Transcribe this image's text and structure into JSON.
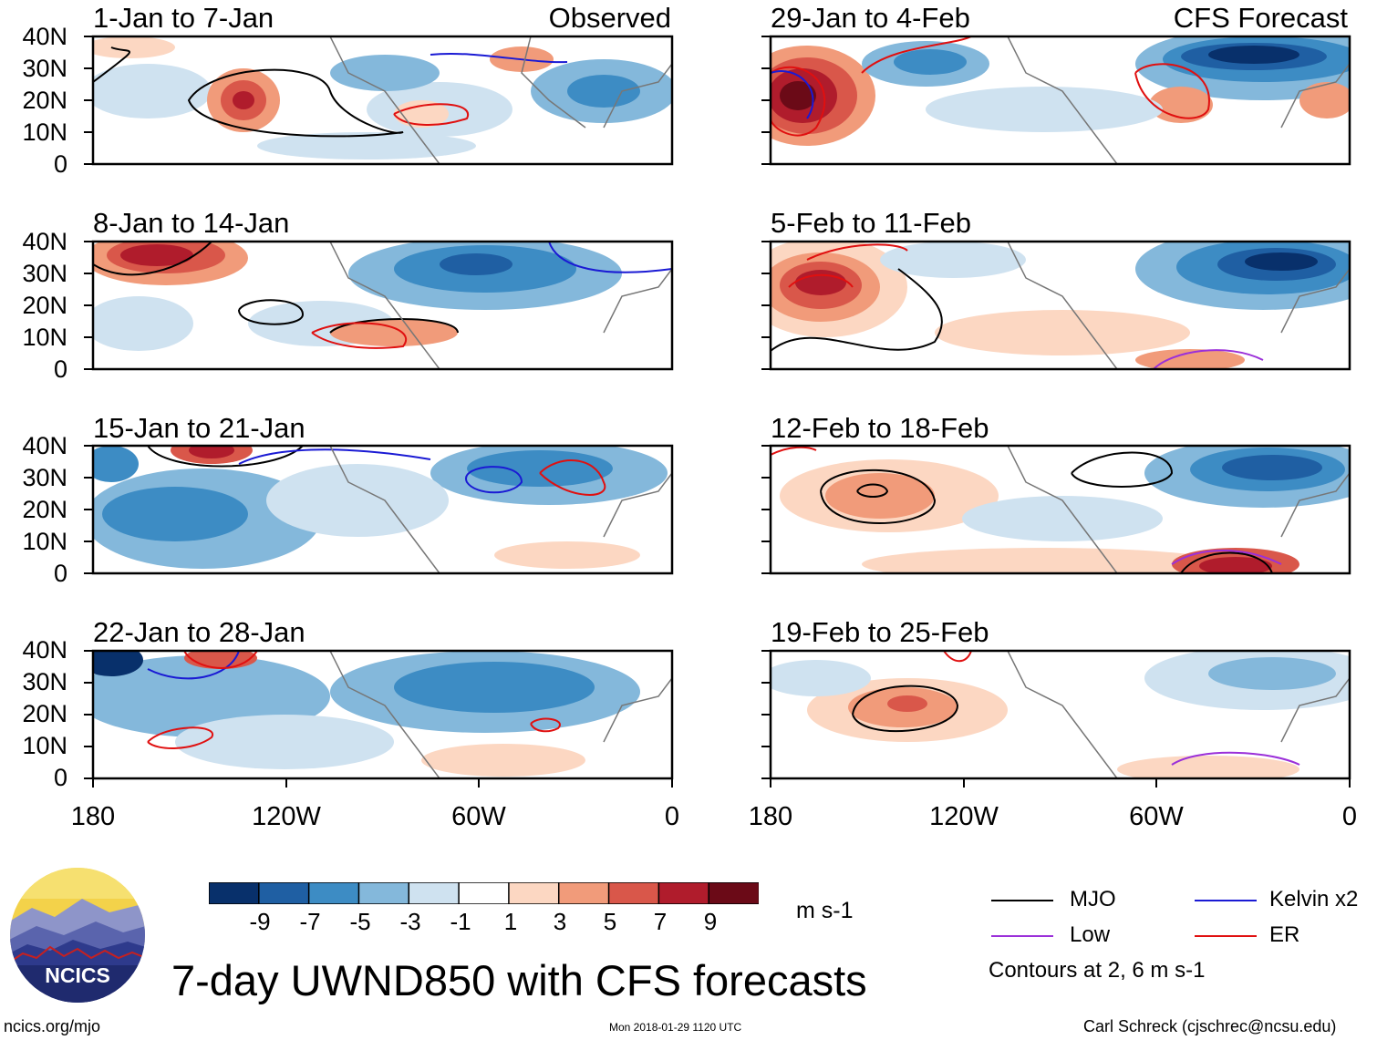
{
  "figure": {
    "title": "7-day UWND850 with CFS forecasts",
    "left_header": "Observed",
    "right_header": "CFS Forecast",
    "units": "m s-1",
    "footer_left": "ncics.org/mjo",
    "footer_center": "Mon 2018-01-29 1120 UTC",
    "footer_right": "Carl Schreck (cjschrec@ncsu.edu)",
    "logo_text": "NCICS"
  },
  "panels": {
    "observed": [
      {
        "title": "1-Jan to 7-Jan"
      },
      {
        "title": "8-Jan to 14-Jan"
      },
      {
        "title": "15-Jan to 21-Jan"
      },
      {
        "title": "22-Jan to 28-Jan"
      }
    ],
    "forecast": [
      {
        "title": "29-Jan to 4-Feb"
      },
      {
        "title": "5-Feb to 11-Feb"
      },
      {
        "title": "12-Feb to 18-Feb"
      },
      {
        "title": "19-Feb to 25-Feb"
      }
    ]
  },
  "axes": {
    "y_ticks": [
      "40N",
      "30N",
      "20N",
      "10N",
      "0"
    ],
    "x_ticks": [
      "180",
      "120W",
      "60W",
      "0"
    ]
  },
  "colorbar": {
    "labels": [
      "-9",
      "-7",
      "-5",
      "-3",
      "-1",
      "1",
      "3",
      "5",
      "7",
      "9"
    ],
    "colors": [
      "#08306b",
      "#1f5fa3",
      "#3d8cc4",
      "#84b8db",
      "#cfe2f0",
      "#ffffff",
      "#fcd7c2",
      "#f19b7a",
      "#d9574a",
      "#b01c2c",
      "#6b0a17"
    ]
  },
  "legend": {
    "items": [
      {
        "label": "MJO",
        "color": "#000000"
      },
      {
        "label": "Kelvin x2",
        "color": "#1a1ad4"
      },
      {
        "label": "Low",
        "color": "#9b30d9"
      },
      {
        "label": "ER",
        "color": "#e01010"
      }
    ],
    "note": "Contours at 2, 6 m s-1"
  }
}
